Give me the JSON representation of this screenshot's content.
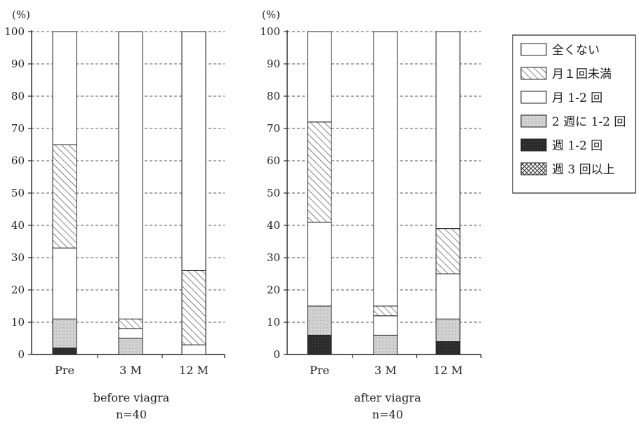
{
  "chart_data": [
    {
      "type": "bar",
      "stacked": true,
      "unit_label": "(%)",
      "ylim": [
        0,
        100
      ],
      "yticks": [
        0,
        10,
        20,
        30,
        40,
        50,
        60,
        70,
        80,
        90,
        100
      ],
      "grid": true,
      "categories": [
        "Pre",
        "3 M",
        "12 M"
      ],
      "caption": [
        "before viagra",
        "n=40"
      ],
      "series": [
        {
          "name": "週3回以上",
          "values": [
            0,
            0,
            0
          ]
        },
        {
          "name": "週1-2回",
          "values": [
            2,
            0,
            0
          ]
        },
        {
          "name": "2週に1-2回",
          "values": [
            9,
            5,
            0
          ]
        },
        {
          "name": "月1-2回",
          "values": [
            22,
            3,
            3
          ]
        },
        {
          "name": "月1回未満",
          "values": [
            32,
            3,
            23
          ]
        },
        {
          "name": "全くない",
          "values": [
            35,
            89,
            74
          ]
        }
      ]
    },
    {
      "type": "bar",
      "stacked": true,
      "unit_label": "(%)",
      "ylim": [
        0,
        100
      ],
      "yticks": [
        0,
        10,
        20,
        30,
        40,
        50,
        60,
        70,
        80,
        90,
        100
      ],
      "grid": true,
      "categories": [
        "Pre",
        "3 M",
        "12 M"
      ],
      "caption": [
        "after viagra",
        "n=40"
      ],
      "series": [
        {
          "name": "週3回以上",
          "values": [
            0,
            0,
            0
          ]
        },
        {
          "name": "週1-2回",
          "values": [
            6,
            0,
            4
          ]
        },
        {
          "name": "2週に1-2回",
          "values": [
            9,
            6,
            7
          ]
        },
        {
          "name": "月1-2回",
          "values": [
            26,
            6,
            14
          ]
        },
        {
          "name": "月1回未満",
          "values": [
            31,
            3,
            14
          ]
        },
        {
          "name": "全くない",
          "values": [
            28,
            85,
            61
          ]
        }
      ]
    }
  ],
  "legend": {
    "position": "top-right",
    "items": [
      {
        "label": "全くない",
        "pattern": "blank"
      },
      {
        "label": "月１回未満",
        "pattern": "diagonal-hatch"
      },
      {
        "label": "月 1-2 回",
        "pattern": "blank"
      },
      {
        "label": "2 週に 1-2 回",
        "pattern": "light-dots"
      },
      {
        "label": "週 1-2 回",
        "pattern": "dark-fill"
      },
      {
        "label": "週 3 回以上",
        "pattern": "cross-hatch"
      }
    ]
  },
  "colors": {
    "axis": "#222222",
    "grid": "#555555",
    "dark_fill": "#2b2b2b",
    "light_fill": "#d2d2d2"
  }
}
